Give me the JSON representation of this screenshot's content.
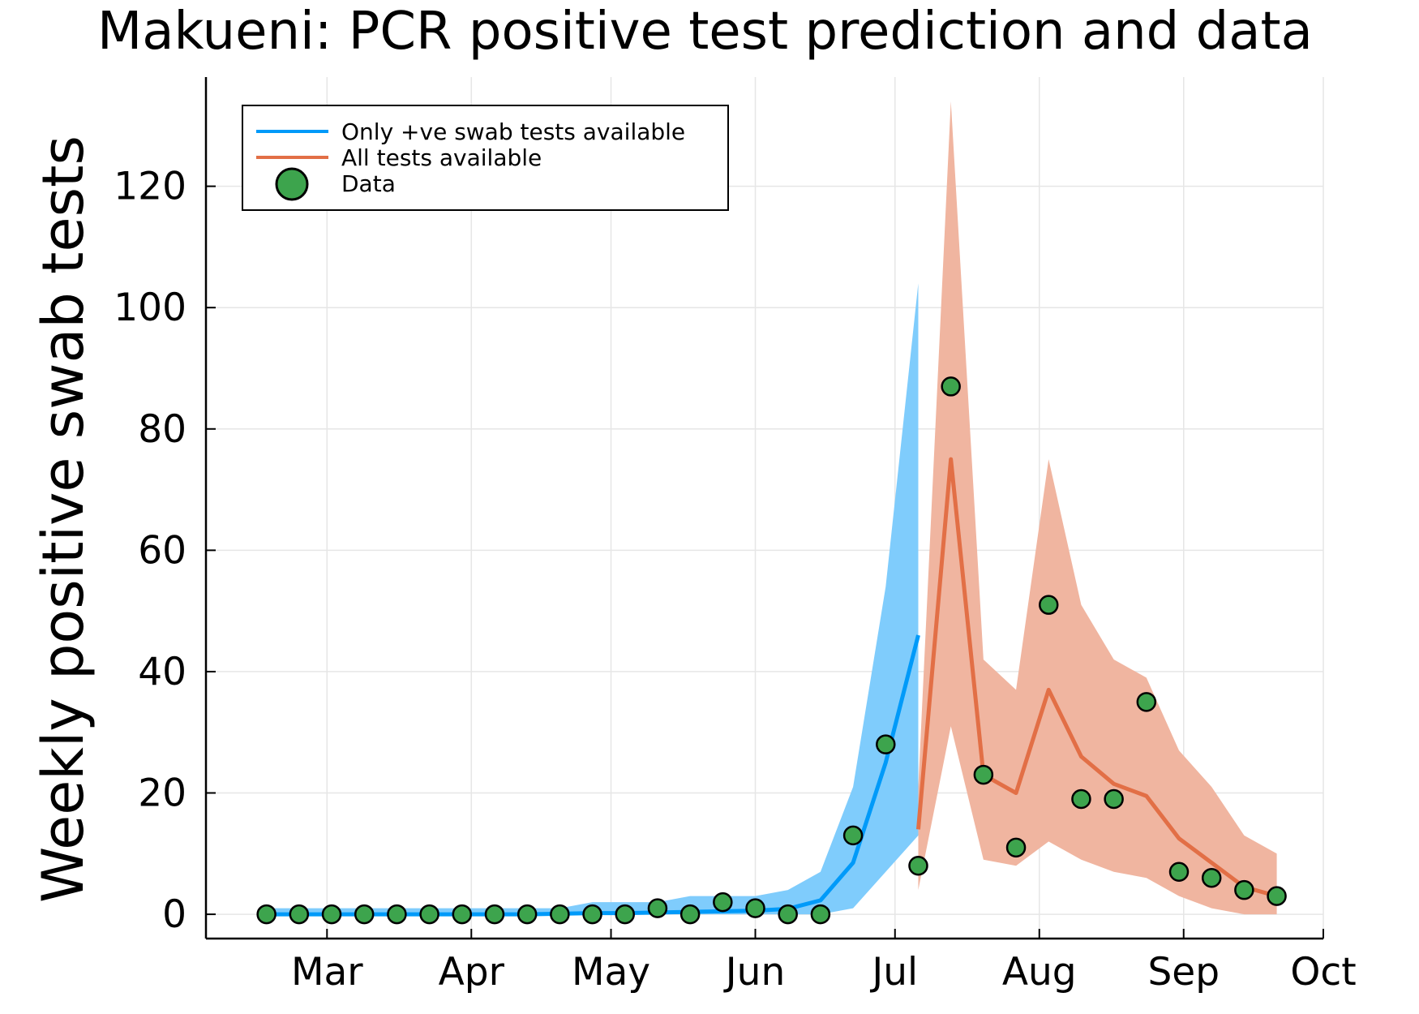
{
  "chart_data": {
    "type": "line",
    "title": "Makueni: PCR positive test prediction and data",
    "ylabel": "Weekly positive swab tests",
    "xlabel": "",
    "xlim": [
      "2020-02-04",
      "2020-10-01"
    ],
    "ylim": [
      -4,
      138
    ],
    "x_ticks": [
      {
        "date": "2020-03-01",
        "label": "Mar"
      },
      {
        "date": "2020-04-01",
        "label": "Apr"
      },
      {
        "date": "2020-05-01",
        "label": "May"
      },
      {
        "date": "2020-06-01",
        "label": "Jun"
      },
      {
        "date": "2020-07-01",
        "label": "Jul"
      },
      {
        "date": "2020-08-01",
        "label": "Aug"
      },
      {
        "date": "2020-09-01",
        "label": "Sep"
      },
      {
        "date": "2020-10-01",
        "label": "Oct"
      }
    ],
    "y_ticks": [
      0,
      20,
      40,
      60,
      80,
      100,
      120
    ],
    "grid": true,
    "legend_position": "top-left",
    "series": [
      {
        "name": "Only +ve swab tests available",
        "kind": "line-with-band",
        "color": "#009af9",
        "band_color": "#7fccfc",
        "points": [
          {
            "x": "2020-02-17",
            "y": 0,
            "lo": 0,
            "hi": 1
          },
          {
            "x": "2020-02-24",
            "y": 0,
            "lo": 0,
            "hi": 1
          },
          {
            "x": "2020-03-02",
            "y": 0,
            "lo": 0,
            "hi": 1
          },
          {
            "x": "2020-03-09",
            "y": 0,
            "lo": 0,
            "hi": 1
          },
          {
            "x": "2020-03-16",
            "y": 0,
            "lo": 0,
            "hi": 1
          },
          {
            "x": "2020-03-23",
            "y": 0,
            "lo": 0,
            "hi": 1
          },
          {
            "x": "2020-03-30",
            "y": 0,
            "lo": 0,
            "hi": 1
          },
          {
            "x": "2020-04-06",
            "y": 0,
            "lo": 0,
            "hi": 1
          },
          {
            "x": "2020-04-13",
            "y": 0,
            "lo": 0,
            "hi": 1
          },
          {
            "x": "2020-04-20",
            "y": 0.1,
            "lo": 0,
            "hi": 1
          },
          {
            "x": "2020-04-27",
            "y": 0.2,
            "lo": 0,
            "hi": 2
          },
          {
            "x": "2020-05-04",
            "y": 0.2,
            "lo": 0,
            "hi": 2
          },
          {
            "x": "2020-05-11",
            "y": 0.3,
            "lo": 0,
            "hi": 2
          },
          {
            "x": "2020-05-18",
            "y": 0.4,
            "lo": 0,
            "hi": 3
          },
          {
            "x": "2020-05-25",
            "y": 0.5,
            "lo": 0,
            "hi": 3
          },
          {
            "x": "2020-06-01",
            "y": 0.6,
            "lo": 0,
            "hi": 3
          },
          {
            "x": "2020-06-08",
            "y": 0.9,
            "lo": 0,
            "hi": 4
          },
          {
            "x": "2020-06-15",
            "y": 2.3,
            "lo": 0,
            "hi": 7
          },
          {
            "x": "2020-06-22",
            "y": 8.5,
            "lo": 1,
            "hi": 21
          },
          {
            "x": "2020-06-29",
            "y": 25,
            "lo": 7,
            "hi": 54
          },
          {
            "x": "2020-07-06",
            "y": 46,
            "lo": 13,
            "hi": 104
          }
        ]
      },
      {
        "name": "All tests available",
        "kind": "line-with-band",
        "color": "#e26f46",
        "band_color": "#f0b5a0",
        "points": [
          {
            "x": "2020-07-06",
            "y": 14,
            "lo": 4,
            "hi": 21
          },
          {
            "x": "2020-07-13",
            "y": 75,
            "lo": 31,
            "hi": 134
          },
          {
            "x": "2020-07-20",
            "y": 23,
            "lo": 9,
            "hi": 42
          },
          {
            "x": "2020-07-27",
            "y": 20,
            "lo": 8,
            "hi": 37
          },
          {
            "x": "2020-08-03",
            "y": 37,
            "lo": 12,
            "hi": 75
          },
          {
            "x": "2020-08-10",
            "y": 26,
            "lo": 9,
            "hi": 51
          },
          {
            "x": "2020-08-17",
            "y": 21.5,
            "lo": 7,
            "hi": 42
          },
          {
            "x": "2020-08-24",
            "y": 19.5,
            "lo": 6,
            "hi": 39
          },
          {
            "x": "2020-08-31",
            "y": 12.5,
            "lo": 3,
            "hi": 27
          },
          {
            "x": "2020-09-07",
            "y": 8.5,
            "lo": 1,
            "hi": 21
          },
          {
            "x": "2020-09-14",
            "y": 4.5,
            "lo": 0,
            "hi": 13
          },
          {
            "x": "2020-09-21",
            "y": 3,
            "lo": 0,
            "hi": 10
          }
        ]
      },
      {
        "name": "Data",
        "kind": "scatter",
        "color": "#3da44d",
        "points": [
          {
            "x": "2020-02-17",
            "y": 0
          },
          {
            "x": "2020-02-24",
            "y": 0
          },
          {
            "x": "2020-03-02",
            "y": 0
          },
          {
            "x": "2020-03-09",
            "y": 0
          },
          {
            "x": "2020-03-16",
            "y": 0
          },
          {
            "x": "2020-03-23",
            "y": 0
          },
          {
            "x": "2020-03-30",
            "y": 0
          },
          {
            "x": "2020-04-06",
            "y": 0
          },
          {
            "x": "2020-04-13",
            "y": 0
          },
          {
            "x": "2020-04-20",
            "y": 0
          },
          {
            "x": "2020-04-27",
            "y": 0
          },
          {
            "x": "2020-05-04",
            "y": 0
          },
          {
            "x": "2020-05-11",
            "y": 1
          },
          {
            "x": "2020-05-18",
            "y": 0
          },
          {
            "x": "2020-05-25",
            "y": 2
          },
          {
            "x": "2020-06-01",
            "y": 1
          },
          {
            "x": "2020-06-08",
            "y": 0
          },
          {
            "x": "2020-06-15",
            "y": 0
          },
          {
            "x": "2020-06-22",
            "y": 13
          },
          {
            "x": "2020-06-29",
            "y": 28
          },
          {
            "x": "2020-07-06",
            "y": 8
          },
          {
            "x": "2020-07-13",
            "y": 87
          },
          {
            "x": "2020-07-20",
            "y": 23
          },
          {
            "x": "2020-07-27",
            "y": 11
          },
          {
            "x": "2020-08-03",
            "y": 51
          },
          {
            "x": "2020-08-10",
            "y": 19
          },
          {
            "x": "2020-08-17",
            "y": 19
          },
          {
            "x": "2020-08-24",
            "y": 35
          },
          {
            "x": "2020-08-31",
            "y": 7
          },
          {
            "x": "2020-09-07",
            "y": 6
          },
          {
            "x": "2020-09-14",
            "y": 4
          },
          {
            "x": "2020-09-21",
            "y": 3
          }
        ]
      }
    ]
  }
}
